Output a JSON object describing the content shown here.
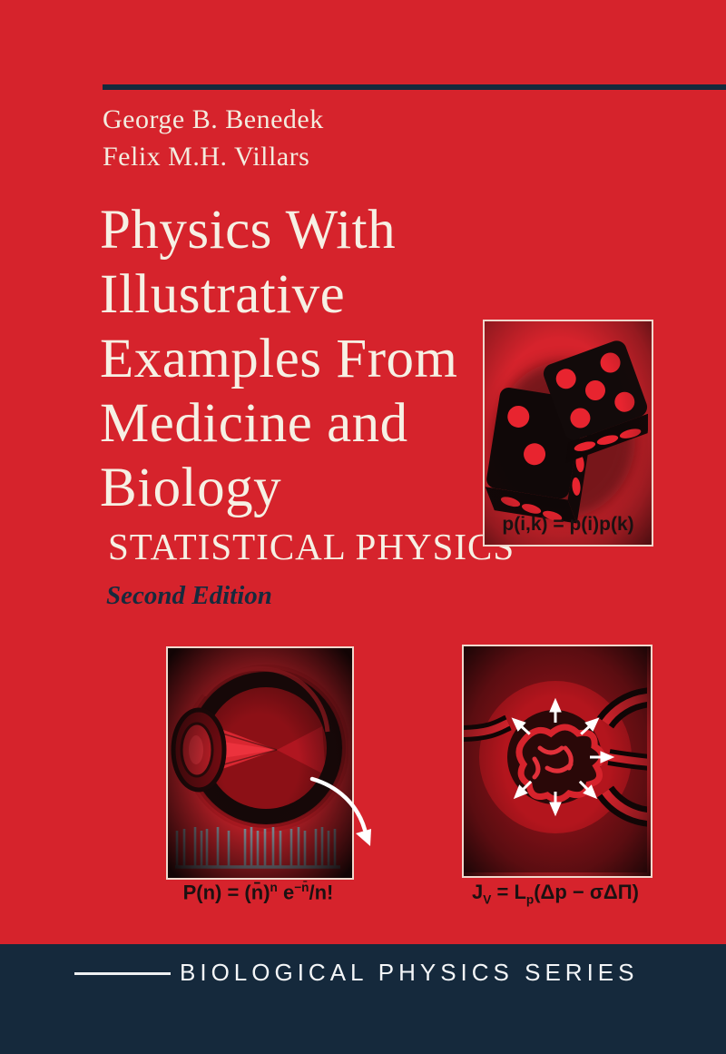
{
  "cover": {
    "authors": [
      "George B. Benedek",
      "Felix M.H. Villars"
    ],
    "title_lines": [
      "Physics With",
      "Illustrative",
      "Examples From",
      "Medicine and",
      "Biology"
    ],
    "subtitle": "STATISTICAL PHYSICS",
    "edition": "Second Edition",
    "equations": {
      "dice": "p(i,k) = p(i)p(k)",
      "eye": {
        "b1": "P(n) = (n̄)",
        "sup1": "n",
        "b2": " e",
        "sup2": "−n̄",
        "b3": "/n!"
      },
      "glomerulus": {
        "b1": "J",
        "sub1": "V",
        "b2": " = L",
        "sub2": "p",
        "b3": "(Δp − σΔΠ)"
      }
    },
    "illustrations": {
      "dice": "two black dice with red pips",
      "eye": "cross-section of human eye with light cone and photon spike train",
      "glomerulus": "glomerulus capillary with outward filtration arrows"
    },
    "series_banner": "BIOLOGICAL PHYSICS SERIES",
    "colors": {
      "background_red": "#d6232c",
      "navy": "#15293c",
      "cream_text": "#f3ecdf",
      "equation_ink": "#1b1111",
      "spike_gray": "#8fa0ad",
      "pip_red": "#e8242f"
    }
  }
}
